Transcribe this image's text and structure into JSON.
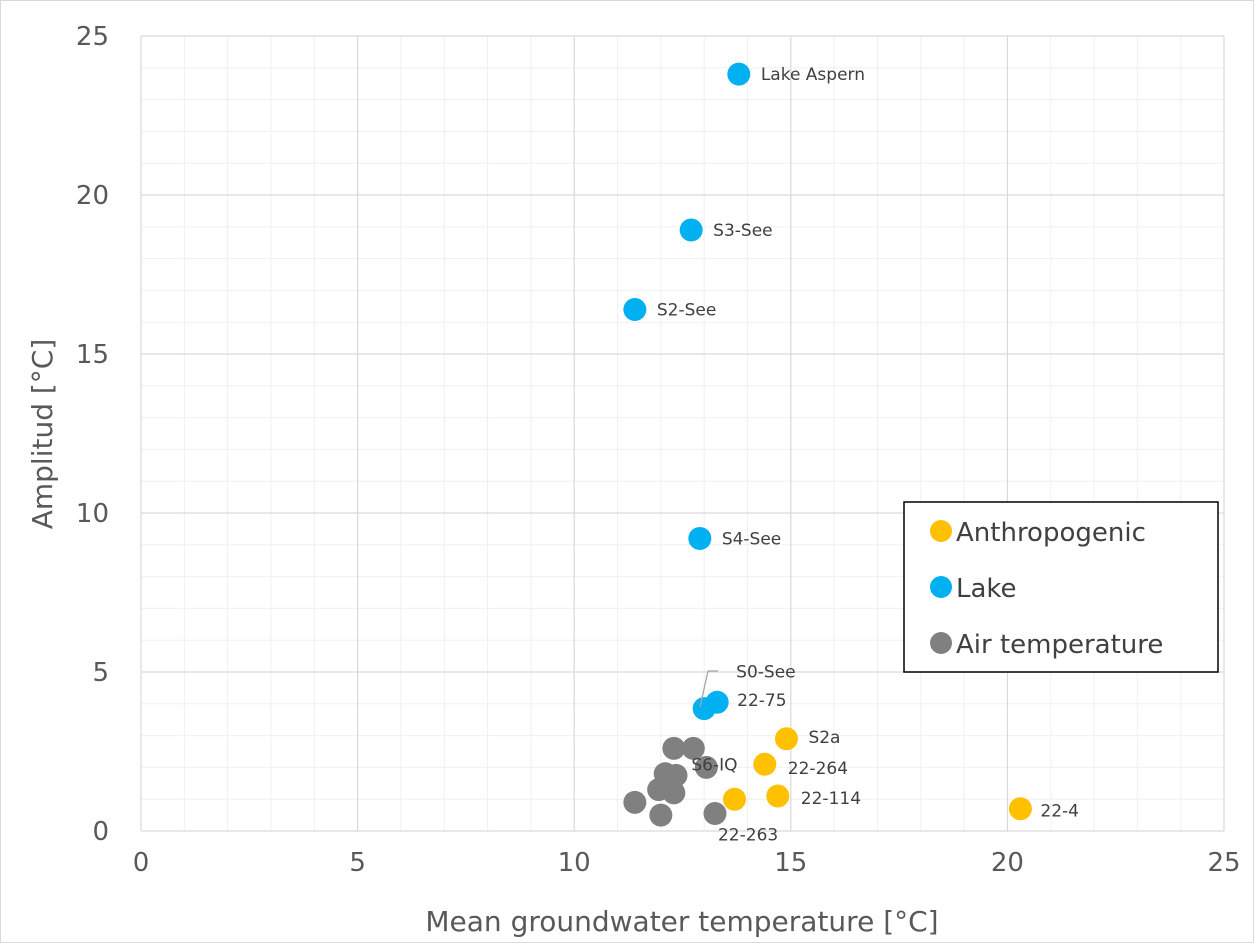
{
  "chart_data": {
    "type": "scatter",
    "title": "",
    "xlabel": "Mean groundwater temperature [°C]",
    "ylabel": "Amplitud [°C]",
    "xlim": [
      0,
      25
    ],
    "ylim": [
      0,
      25
    ],
    "x_ticks": [
      "0",
      "5",
      "10",
      "15",
      "20",
      "25"
    ],
    "y_ticks": [
      "0",
      "5",
      "10",
      "15",
      "20",
      "25"
    ],
    "grid": true,
    "legend_position": "right",
    "series": [
      {
        "name": "Anthropogenic",
        "color": "#FFC000",
        "points": [
          {
            "x": 14.9,
            "y": 2.9,
            "label": "S2a"
          },
          {
            "x": 14.4,
            "y": 2.1,
            "label": "22-264"
          },
          {
            "x": 14.7,
            "y": 1.1,
            "label": "22-114"
          },
          {
            "x": 13.7,
            "y": 1.0,
            "label": ""
          },
          {
            "x": 20.3,
            "y": 0.7,
            "label": "22-4"
          }
        ]
      },
      {
        "name": "Lake",
        "color": "#00B0F0",
        "points": [
          {
            "x": 13.8,
            "y": 23.8,
            "label": "Lake Aspern"
          },
          {
            "x": 12.7,
            "y": 18.9,
            "label": "S3-See"
          },
          {
            "x": 11.4,
            "y": 16.4,
            "label": "S2-See"
          },
          {
            "x": 12.9,
            "y": 9.2,
            "label": "S4-See"
          },
          {
            "x": 13.0,
            "y": 3.85,
            "label": "S0-See"
          },
          {
            "x": 13.3,
            "y": 4.05,
            "label": "22-75"
          }
        ]
      },
      {
        "name": "Air temperature",
        "color": "#808080",
        "points": [
          {
            "x": 12.3,
            "y": 2.6,
            "label": ""
          },
          {
            "x": 12.75,
            "y": 2.6,
            "label": "S6-IQ"
          },
          {
            "x": 13.05,
            "y": 2.0,
            "label": ""
          },
          {
            "x": 12.1,
            "y": 1.8,
            "label": ""
          },
          {
            "x": 12.35,
            "y": 1.75,
            "label": ""
          },
          {
            "x": 11.95,
            "y": 1.3,
            "label": ""
          },
          {
            "x": 12.3,
            "y": 1.2,
            "label": ""
          },
          {
            "x": 11.4,
            "y": 0.9,
            "label": ""
          },
          {
            "x": 12.0,
            "y": 0.5,
            "label": ""
          },
          {
            "x": 13.25,
            "y": 0.55,
            "label": "22-263"
          }
        ]
      }
    ]
  }
}
